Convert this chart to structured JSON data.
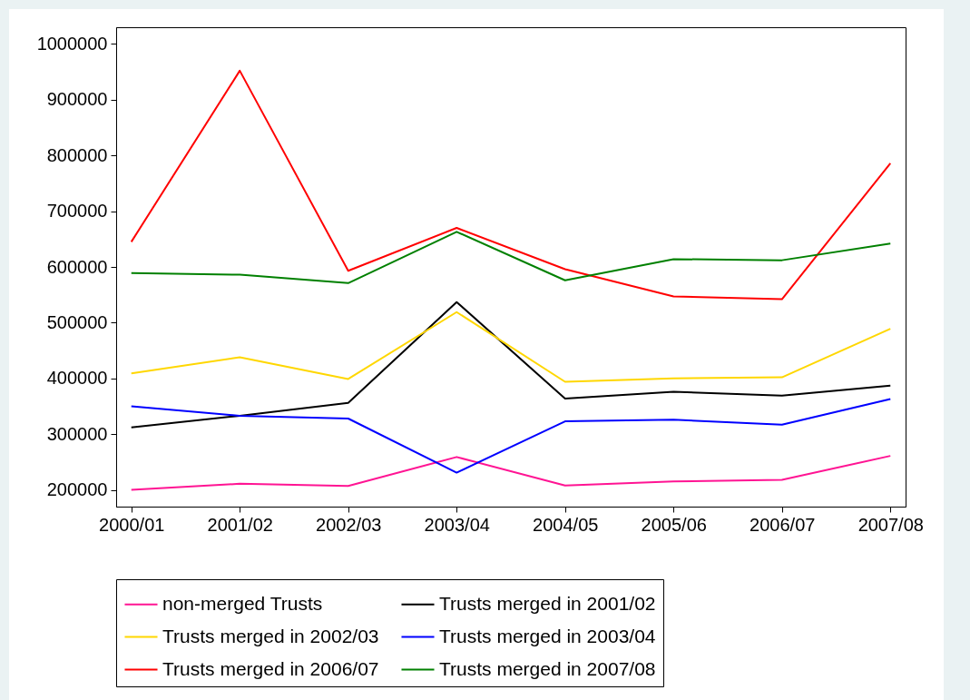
{
  "chart_data": {
    "type": "line",
    "categories": [
      "2000/01",
      "2001/02",
      "2002/03",
      "2003/04",
      "2004/05",
      "2005/06",
      "2006/07",
      "2007/08"
    ],
    "series": [
      {
        "name": "non-merged Trusts",
        "color": "#ff1493",
        "values": [
          200000,
          211000,
          207000,
          259000,
          208000,
          215000,
          218000,
          261000
        ]
      },
      {
        "name": "Trusts merged in 2001/02",
        "color": "#000000",
        "values": [
          312000,
          333000,
          356000,
          537000,
          364000,
          376000,
          369000,
          387000
        ]
      },
      {
        "name": "Trusts merged in 2002/03",
        "color": "#ffd700",
        "values": [
          409000,
          438000,
          399000,
          519000,
          394000,
          400000,
          402000,
          489000
        ]
      },
      {
        "name": "Trusts merged in 2003/04",
        "color": "#0000ff",
        "values": [
          350000,
          333000,
          328000,
          231000,
          323000,
          326000,
          317000,
          363000
        ]
      },
      {
        "name": "Trusts merged in 2006/07",
        "color": "#ff0000",
        "values": [
          645000,
          952000,
          593000,
          670000,
          596000,
          547000,
          542000,
          786000
        ]
      },
      {
        "name": "Trusts merged in 2007/08",
        "color": "#008000",
        "values": [
          589000,
          586000,
          571000,
          663000,
          576000,
          614000,
          612000,
          642000
        ]
      }
    ],
    "ylim": [
      170000,
      1030000
    ],
    "yticks": [
      200000,
      300000,
      400000,
      500000,
      600000,
      700000,
      800000,
      900000,
      1000000
    ],
    "grid": false,
    "legend": "bottom",
    "marker": "none",
    "line_style": "solid"
  }
}
